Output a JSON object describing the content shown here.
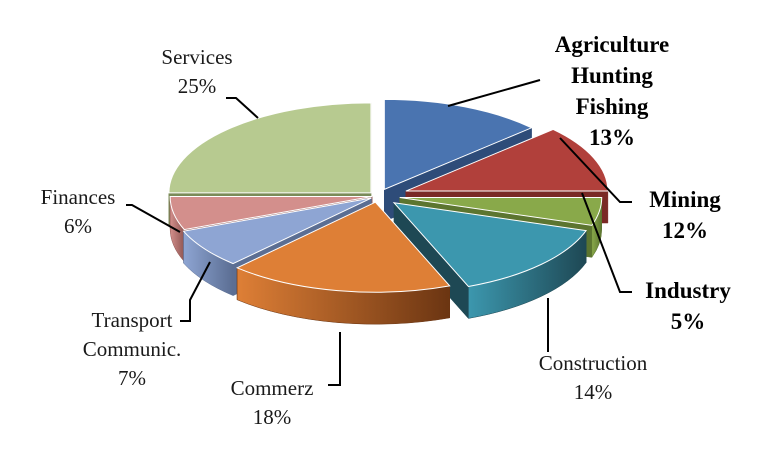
{
  "chart_data": {
    "type": "pie",
    "title": "",
    "style": "3d-exploded",
    "slices": [
      {
        "label": "Agriculture Hunting Fishing",
        "value": 13,
        "value_label": "13%",
        "color": "#4a74b0",
        "dark": "#2e4c79",
        "bold": true
      },
      {
        "label": "Mining",
        "value": 12,
        "value_label": "12%",
        "color": "#b1403b",
        "dark": "#7a2925",
        "bold": true
      },
      {
        "label": "Industry",
        "value": 5,
        "value_label": "5%",
        "color": "#89a94a",
        "dark": "#5c7530",
        "bold": true
      },
      {
        "label": "Construction",
        "value": 14,
        "value_label": "14%",
        "color": "#3c97ae",
        "dark": "#1e4854",
        "bold": false
      },
      {
        "label": "Commerz",
        "value": 18,
        "value_label": "18%",
        "color": "#de7f36",
        "dark": "#6b3512",
        "bold": false
      },
      {
        "label": "Transport Communic.",
        "value": 7,
        "value_label": "7%",
        "color": "#8ea5d3",
        "dark": "#5b6e93",
        "bold": false
      },
      {
        "label": "Finances",
        "value": 6,
        "value_label": "6%",
        "color": "#d38f8c",
        "dark": "#8f5653",
        "bold": false
      },
      {
        "label": "Services",
        "value": 25,
        "value_label": "25%",
        "color": "#b7ca90",
        "dark": "#7a8b58",
        "bold": false
      }
    ],
    "legend": "none"
  },
  "labels": [
    {
      "lines": [
        "Agriculture",
        "Hunting",
        "Fishing",
        "13%"
      ]
    },
    {
      "lines": [
        "Mining",
        "12%"
      ]
    },
    {
      "lines": [
        "Industry",
        "5%"
      ]
    },
    {
      "lines": [
        "Construction",
        "14%"
      ]
    },
    {
      "lines": [
        "Commerz",
        "18%"
      ]
    },
    {
      "lines": [
        "Transport",
        "Communic.",
        "7%"
      ]
    },
    {
      "lines": [
        "Finances",
        "6%"
      ]
    },
    {
      "lines": [
        "Services",
        "25%"
      ]
    }
  ]
}
